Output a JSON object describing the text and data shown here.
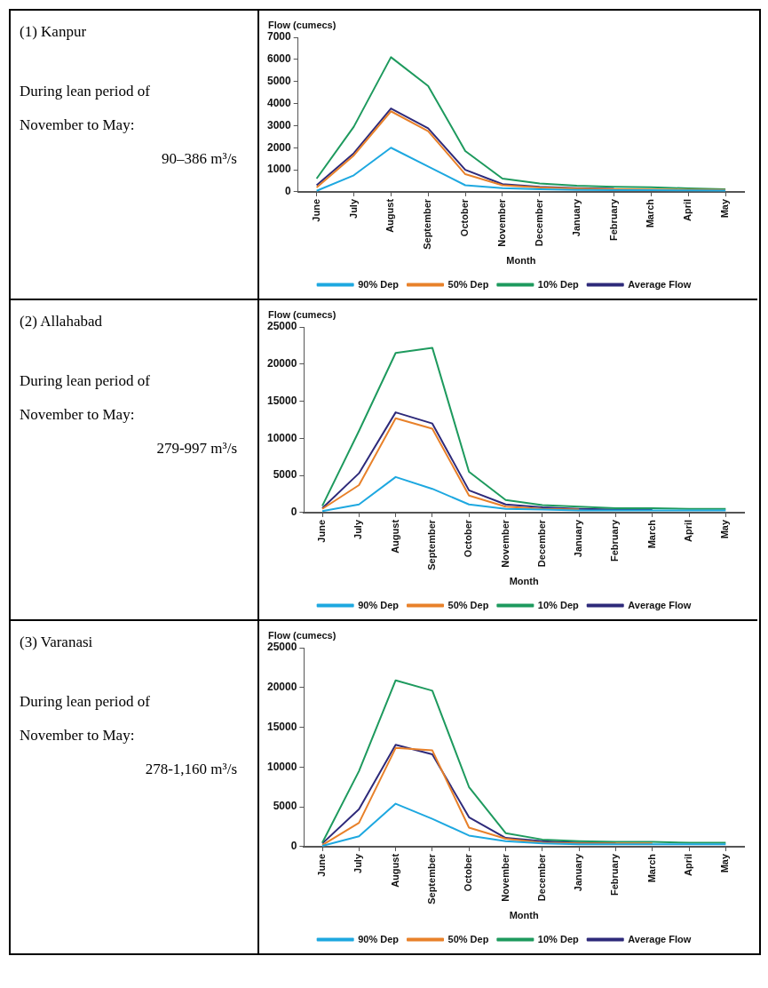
{
  "chart_data": [
    {
      "type": "other",
      "title": "(1) Kanpur",
      "annotations": [
        "During lean period of November to May:",
        "90–386 m³/s"
      ]
    },
    {
      "type": "line",
      "ylabel": "Flow (cumecs)",
      "xlabel": "Month",
      "categories": [
        "June",
        "July",
        "August",
        "September",
        "October",
        "November",
        "December",
        "January",
        "February",
        "March",
        "April",
        "May"
      ],
      "ylim": [
        0,
        7000
      ],
      "yticks": [
        0,
        1000,
        2000,
        3000,
        4000,
        5000,
        6000,
        7000
      ],
      "legend": "bottom",
      "grid": false,
      "marker": "none",
      "series": [
        {
          "name": "90% Dep",
          "color": "#1ea8e0",
          "values": [
            50,
            750,
            2000,
            1150,
            300,
            170,
            120,
            90,
            80,
            80,
            70,
            60
          ]
        },
        {
          "name": "50% Dep",
          "color": "#e8812a",
          "values": [
            200,
            1650,
            3650,
            2750,
            800,
            300,
            200,
            150,
            120,
            110,
            100,
            90
          ]
        },
        {
          "name": "10% Dep",
          "color": "#1e9a5e",
          "values": [
            600,
            2950,
            6100,
            4800,
            1850,
            600,
            380,
            280,
            230,
            210,
            160,
            120
          ]
        },
        {
          "name": "Average Flow",
          "color": "#2e2a7a",
          "values": [
            300,
            1750,
            3780,
            2880,
            1000,
            350,
            230,
            170,
            140,
            null,
            null,
            null
          ]
        }
      ]
    },
    {
      "type": "other",
      "title": "(2) Allahabad",
      "annotations": [
        "During lean period of November to May:",
        "279-997 m³/s"
      ]
    },
    {
      "type": "line",
      "ylabel": "Flow (cumecs)",
      "xlabel": "Month",
      "categories": [
        "June",
        "July",
        "August",
        "September",
        "October",
        "November",
        "December",
        "January",
        "February",
        "March",
        "April",
        "May"
      ],
      "ylim": [
        0,
        25000
      ],
      "yticks": [
        0,
        5000,
        10000,
        15000,
        20000,
        25000
      ],
      "legend": "bottom",
      "grid": false,
      "marker": "none",
      "series": [
        {
          "name": "90% Dep",
          "color": "#1ea8e0",
          "values": [
            200,
            1100,
            4800,
            3200,
            1100,
            500,
            400,
            300,
            300,
            300,
            300,
            300
          ]
        },
        {
          "name": "50% Dep",
          "color": "#e8812a",
          "values": [
            500,
            3700,
            12700,
            11300,
            2300,
            800,
            500,
            400,
            null,
            null,
            null,
            null
          ]
        },
        {
          "name": "10% Dep",
          "color": "#1e9a5e",
          "values": [
            900,
            11000,
            21500,
            22200,
            5500,
            1700,
            1000,
            800,
            600,
            600,
            500,
            500
          ]
        },
        {
          "name": "Average Flow",
          "color": "#2e2a7a",
          "values": [
            600,
            5300,
            13500,
            12000,
            3000,
            1100,
            700,
            500,
            400,
            400,
            null,
            null
          ]
        }
      ]
    },
    {
      "type": "other",
      "title": "(3) Varanasi",
      "annotations": [
        "During lean period of November to May:",
        "278-1,160 m³/s"
      ]
    },
    {
      "type": "line",
      "ylabel": "Flow (cumecs)",
      "xlabel": "Month",
      "categories": [
        "June",
        "July",
        "August",
        "September",
        "October",
        "November",
        "December",
        "January",
        "February",
        "March",
        "April",
        "May"
      ],
      "ylim": [
        0,
        25000
      ],
      "yticks": [
        0,
        5000,
        10000,
        15000,
        20000,
        25000
      ],
      "legend": "bottom",
      "grid": false,
      "marker": "none",
      "series": [
        {
          "name": "90% Dep",
          "color": "#1ea8e0",
          "values": [
            100,
            1300,
            5400,
            3500,
            1400,
            700,
            400,
            300,
            300,
            300,
            300,
            300
          ]
        },
        {
          "name": "50% Dep",
          "color": "#e8812a",
          "values": [
            200,
            3000,
            12400,
            12100,
            2400,
            1000,
            500,
            400,
            400,
            400,
            null,
            null
          ]
        },
        {
          "name": "10% Dep",
          "color": "#1e9a5e",
          "values": [
            500,
            9500,
            20900,
            19600,
            7500,
            1700,
            900,
            700,
            600,
            600,
            500,
            500
          ]
        },
        {
          "name": "Average Flow",
          "color": "#2e2a7a",
          "values": [
            400,
            4700,
            12800,
            11600,
            3700,
            1100,
            700,
            500,
            500,
            null,
            null,
            null
          ]
        }
      ]
    }
  ]
}
